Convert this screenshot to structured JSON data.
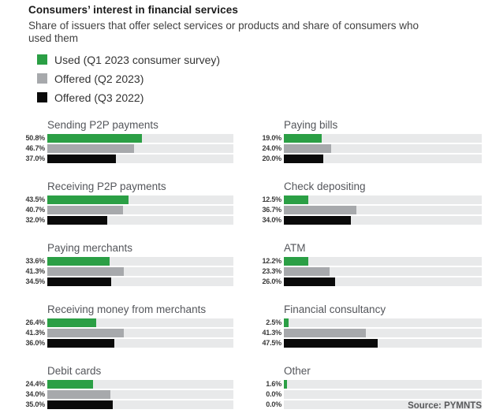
{
  "header": {
    "title": "Consumers’ interest in financial services",
    "subtitle": "Share of issuers that offer select services or products and share of consumers who used them"
  },
  "legend": [
    {
      "label": "Used (Q1 2023 consumer survey)",
      "color": "#2b9f45"
    },
    {
      "label": "Offered (Q2 2023)",
      "color": "#a7a9ac"
    },
    {
      "label": "Offered (Q3 2022)",
      "color": "#0a0a0a"
    }
  ],
  "source": "Source: PYMNTS",
  "chart_data": {
    "type": "bar",
    "orientation": "horizontal",
    "unit": "%",
    "xlim": [
      0,
      100
    ],
    "grid": false,
    "legend_position": "top-left",
    "track_color": "#e8e9ea",
    "series_names": [
      "Used (Q1 2023 consumer survey)",
      "Offered (Q2 2023)",
      "Offered (Q3 2022)"
    ],
    "colors": [
      "#2b9f45",
      "#a7a9ac",
      "#0a0a0a"
    ],
    "layout": "two-column grid, row-major order",
    "groups": [
      {
        "category": "Sending P2P payments",
        "values": [
          50.8,
          46.7,
          37.0
        ]
      },
      {
        "category": "Paying bills",
        "values": [
          19.0,
          24.0,
          20.0
        ]
      },
      {
        "category": "Receiving P2P payments",
        "values": [
          43.5,
          40.7,
          32.0
        ]
      },
      {
        "category": "Check depositing",
        "values": [
          12.5,
          36.7,
          34.0
        ]
      },
      {
        "category": "Paying merchants",
        "values": [
          33.6,
          41.3,
          34.5
        ]
      },
      {
        "category": "ATM",
        "values": [
          12.2,
          23.3,
          26.0
        ]
      },
      {
        "category": "Receiving money from merchants",
        "values": [
          26.4,
          41.3,
          36.0
        ]
      },
      {
        "category": "Financial consultancy",
        "values": [
          2.5,
          41.3,
          47.5
        ]
      },
      {
        "category": "Debit cards",
        "values": [
          24.4,
          34.0,
          35.0
        ]
      },
      {
        "category": "Other",
        "values": [
          1.6,
          0.0,
          0.0
        ]
      }
    ]
  }
}
